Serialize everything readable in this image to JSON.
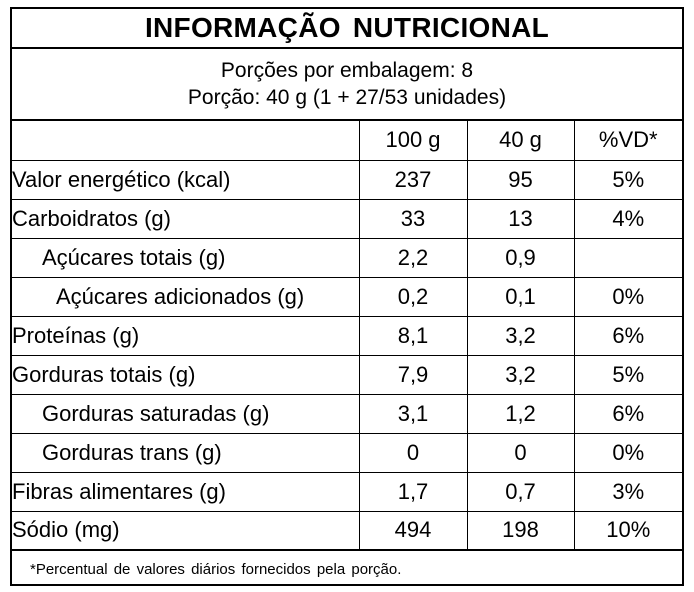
{
  "label": {
    "title": "INFORMAÇÃO NUTRICIONAL",
    "servings_per_package": "Porções por embalagem: 8",
    "serving_size": "Porção: 40 g (1 + 27/53 unidades)",
    "columns": [
      "",
      "100 g",
      "40 g",
      "%VD*"
    ],
    "rows": [
      {
        "name": "Valor energético (kcal)",
        "per100": "237",
        "perServing": "95",
        "dv": "5%",
        "indent": 0
      },
      {
        "name": "Carboidratos (g)",
        "per100": "33",
        "perServing": "13",
        "dv": "4%",
        "indent": 0
      },
      {
        "name": "Açúcares totais (g)",
        "per100": "2,2",
        "perServing": "0,9",
        "dv": "",
        "indent": 1
      },
      {
        "name": "Açúcares adicionados (g)",
        "per100": "0,2",
        "perServing": "0,1",
        "dv": "0%",
        "indent": 2
      },
      {
        "name": "Proteínas (g)",
        "per100": "8,1",
        "perServing": "3,2",
        "dv": "6%",
        "indent": 0
      },
      {
        "name": "Gorduras totais (g)",
        "per100": "7,9",
        "perServing": "3,2",
        "dv": "5%",
        "indent": 0
      },
      {
        "name": "Gorduras saturadas (g)",
        "per100": "3,1",
        "perServing": "1,2",
        "dv": "6%",
        "indent": 1
      },
      {
        "name": "Gorduras trans (g)",
        "per100": "0",
        "perServing": "0",
        "dv": "0%",
        "indent": 1
      },
      {
        "name": "Fibras alimentares (g)",
        "per100": "1,7",
        "perServing": "0,7",
        "dv": "3%",
        "indent": 0
      },
      {
        "name": "Sódio (mg)",
        "per100": "494",
        "perServing": "198",
        "dv": "10%",
        "indent": 0
      }
    ],
    "footnote": "*Percentual de valores diários fornecidos pela porção."
  }
}
